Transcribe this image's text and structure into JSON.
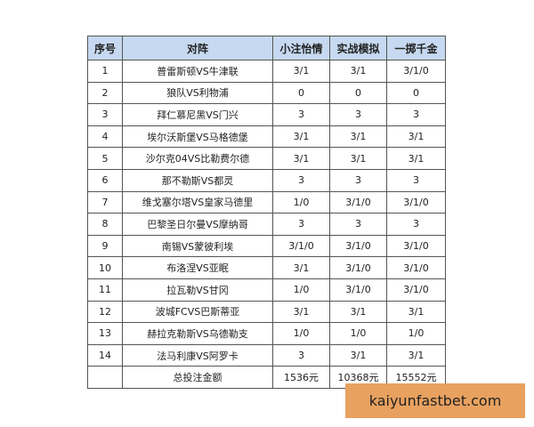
{
  "table": {
    "headers": [
      "序号",
      "对阵",
      "小注怡情",
      "实战模拟",
      "一掷千金"
    ],
    "rows": [
      [
        "1",
        "普雷斯顿VS牛津联",
        "3/1",
        "3/1",
        "3/1/0"
      ],
      [
        "2",
        "狼队VS利物浦",
        "0",
        "0",
        "0"
      ],
      [
        "3",
        "拜仁慕尼黑VS门兴",
        "3",
        "3",
        "3"
      ],
      [
        "4",
        "埃尔沃斯堡VS马格德堡",
        "3/1",
        "3/1",
        "3/1"
      ],
      [
        "5",
        "沙尔克04VS比勒费尔德",
        "3/1",
        "3/1",
        "3/1"
      ],
      [
        "6",
        "那不勒斯VS都灵",
        "3",
        "3",
        "3"
      ],
      [
        "7",
        "维戈塞尔塔VS皇家马德里",
        "1/0",
        "3/1/0",
        "3/1/0"
      ],
      [
        "8",
        "巴黎圣日尔曼VS摩纳哥",
        "3",
        "3",
        "3"
      ],
      [
        "9",
        "南锡VS蒙彼利埃",
        "3/1/0",
        "3/1/0",
        "3/1/0"
      ],
      [
        "10",
        "布洛涅VS亚眠",
        "3/1",
        "3/1/0",
        "3/1/0"
      ],
      [
        "11",
        "拉瓦勒VS甘冈",
        "1/0",
        "3/1/0",
        "3/1/0"
      ],
      [
        "12",
        "波城FCVS巴斯蒂亚",
        "3/1",
        "3/1",
        "3/1"
      ],
      [
        "13",
        "赫拉克勒斯VS乌德勒支",
        "1/0",
        "1/0",
        "1/0"
      ],
      [
        "14",
        "法马利康VS阿罗卡",
        "3",
        "3/1",
        "3/1"
      ],
      [
        "",
        "总投注金额",
        "1536元",
        "10368元",
        "15552元"
      ]
    ]
  },
  "watermark": "kaiyunfastbet.com",
  "colors": {
    "header_bg": "#c6d9f0",
    "watermark_bg": "#e8a15f"
  }
}
